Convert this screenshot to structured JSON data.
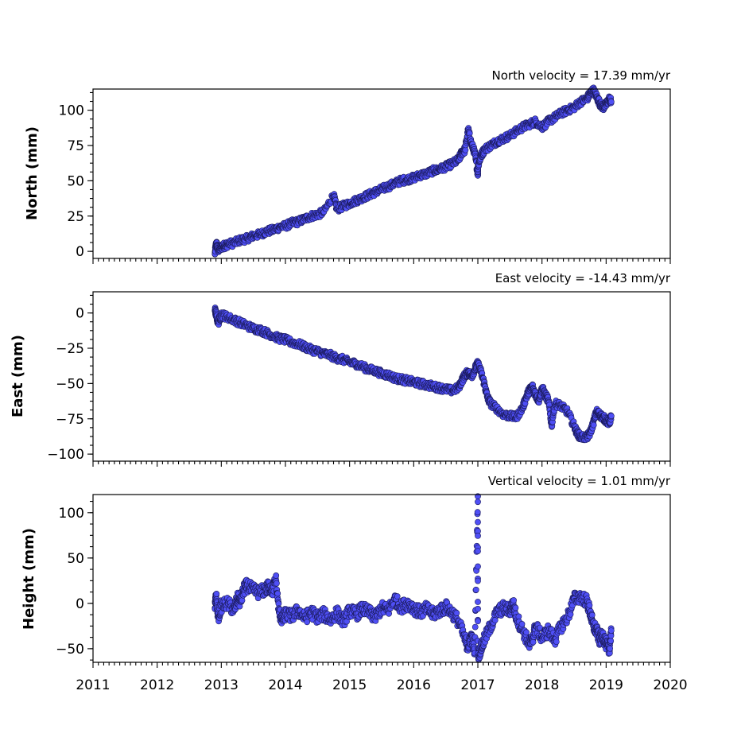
{
  "colors": {
    "marker_fill": "#4f4ff5",
    "marker_edge": "#1a1a5a",
    "axes": "#000000"
  },
  "chart_data": [
    {
      "type": "scatter",
      "title": "North velocity = 17.39 mm/yr",
      "ylabel": "North (mm)",
      "xlabel": "",
      "xlim": [
        2011,
        2020
      ],
      "ylim": [
        -5,
        115
      ],
      "yticks": [
        0,
        25,
        50,
        75,
        100
      ],
      "ytick_labels": [
        "0",
        "25",
        "50",
        "75",
        "100"
      ],
      "grid": false,
      "series": [
        {
          "points": [
            [
              2012.9,
              -2
            ],
            [
              2012.92,
              6
            ],
            [
              2012.95,
              1
            ],
            [
              2013.0,
              3
            ],
            [
              2013.05,
              4
            ],
            [
              2013.1,
              5
            ],
            [
              2013.2,
              6
            ],
            [
              2013.3,
              8
            ],
            [
              2013.4,
              9
            ],
            [
              2013.5,
              11
            ],
            [
              2013.6,
              12
            ],
            [
              2013.7,
              14
            ],
            [
              2013.8,
              15
            ],
            [
              2013.9,
              17
            ],
            [
              2014.0,
              18
            ],
            [
              2014.1,
              20
            ],
            [
              2014.2,
              21
            ],
            [
              2014.3,
              23
            ],
            [
              2014.4,
              25
            ],
            [
              2014.5,
              26
            ],
            [
              2014.6,
              28
            ],
            [
              2014.75,
              40
            ],
            [
              2014.8,
              30
            ],
            [
              2014.9,
              32
            ],
            [
              2015.0,
              34
            ],
            [
              2015.1,
              36
            ],
            [
              2015.2,
              38
            ],
            [
              2015.3,
              40
            ],
            [
              2015.4,
              42
            ],
            [
              2015.5,
              44
            ],
            [
              2015.6,
              46
            ],
            [
              2015.7,
              48
            ],
            [
              2015.8,
              50
            ],
            [
              2015.9,
              51
            ],
            [
              2016.0,
              52
            ],
            [
              2016.1,
              54
            ],
            [
              2016.2,
              55
            ],
            [
              2016.3,
              57
            ],
            [
              2016.4,
              58
            ],
            [
              2016.5,
              60
            ],
            [
              2016.6,
              62
            ],
            [
              2016.7,
              65
            ],
            [
              2016.75,
              70
            ],
            [
              2016.8,
              72
            ],
            [
              2016.85,
              86
            ],
            [
              2016.9,
              76
            ],
            [
              2016.95,
              70
            ],
            [
              2017.0,
              55
            ],
            [
              2017.0,
              60
            ],
            [
              2017.05,
              68
            ],
            [
              2017.1,
              72
            ],
            [
              2017.2,
              75
            ],
            [
              2017.3,
              78
            ],
            [
              2017.4,
              80
            ],
            [
              2017.5,
              82
            ],
            [
              2017.6,
              85
            ],
            [
              2017.7,
              88
            ],
            [
              2017.8,
              90
            ],
            [
              2017.9,
              92
            ],
            [
              2018.0,
              88
            ],
            [
              2018.1,
              92
            ],
            [
              2018.2,
              95
            ],
            [
              2018.3,
              98
            ],
            [
              2018.4,
              100
            ],
            [
              2018.5,
              102
            ],
            [
              2018.6,
              106
            ],
            [
              2018.7,
              108
            ],
            [
              2018.75,
              112
            ],
            [
              2018.8,
              114
            ],
            [
              2018.85,
              110
            ],
            [
              2018.9,
              105
            ],
            [
              2018.95,
              102
            ],
            [
              2019.0,
              104
            ],
            [
              2019.05,
              108
            ],
            [
              2019.08,
              106
            ]
          ]
        }
      ]
    },
    {
      "type": "scatter",
      "title": "East velocity = -14.43 mm/yr",
      "ylabel": "East (mm)",
      "xlabel": "",
      "xlim": [
        2011,
        2020
      ],
      "ylim": [
        -105,
        15
      ],
      "yticks": [
        0,
        -25,
        -50,
        -75,
        -100
      ],
      "ytick_labels": [
        "0",
        "−25",
        "−50",
        "−75",
        "−100"
      ],
      "grid": false,
      "series": [
        {
          "points": [
            [
              2012.9,
              2
            ],
            [
              2012.92,
              -1
            ],
            [
              2012.95,
              -7
            ],
            [
              2013.0,
              -1
            ],
            [
              2013.1,
              -3
            ],
            [
              2013.2,
              -5
            ],
            [
              2013.3,
              -7
            ],
            [
              2013.4,
              -9
            ],
            [
              2013.5,
              -11
            ],
            [
              2013.6,
              -12
            ],
            [
              2013.7,
              -14
            ],
            [
              2013.8,
              -16
            ],
            [
              2013.9,
              -18
            ],
            [
              2014.0,
              -19
            ],
            [
              2014.1,
              -21
            ],
            [
              2014.2,
              -22
            ],
            [
              2014.3,
              -24
            ],
            [
              2014.4,
              -26
            ],
            [
              2014.5,
              -27
            ],
            [
              2014.6,
              -29
            ],
            [
              2014.7,
              -30
            ],
            [
              2014.8,
              -32
            ],
            [
              2014.9,
              -33
            ],
            [
              2015.0,
              -35
            ],
            [
              2015.1,
              -36
            ],
            [
              2015.2,
              -38
            ],
            [
              2015.3,
              -40
            ],
            [
              2015.4,
              -41
            ],
            [
              2015.5,
              -43
            ],
            [
              2015.6,
              -44
            ],
            [
              2015.7,
              -46
            ],
            [
              2015.8,
              -47
            ],
            [
              2015.9,
              -48
            ],
            [
              2016.0,
              -49
            ],
            [
              2016.1,
              -50
            ],
            [
              2016.2,
              -51
            ],
            [
              2016.3,
              -52
            ],
            [
              2016.4,
              -53
            ],
            [
              2016.5,
              -54
            ],
            [
              2016.6,
              -55
            ],
            [
              2016.7,
              -53
            ],
            [
              2016.75,
              -48
            ],
            [
              2016.8,
              -44
            ],
            [
              2016.85,
              -42
            ],
            [
              2016.9,
              -45
            ],
            [
              2016.95,
              -40
            ],
            [
              2017.0,
              -36
            ],
            [
              2017.05,
              -42
            ],
            [
              2017.1,
              -50
            ],
            [
              2017.15,
              -60
            ],
            [
              2017.2,
              -64
            ],
            [
              2017.3,
              -68
            ],
            [
              2017.4,
              -72
            ],
            [
              2017.5,
              -73
            ],
            [
              2017.6,
              -74
            ],
            [
              2017.7,
              -67
            ],
            [
              2017.75,
              -60
            ],
            [
              2017.8,
              -55
            ],
            [
              2017.85,
              -52
            ],
            [
              2017.9,
              -58
            ],
            [
              2017.95,
              -62
            ],
            [
              2018.0,
              -53
            ],
            [
              2018.05,
              -58
            ],
            [
              2018.1,
              -62
            ],
            [
              2018.15,
              -80
            ],
            [
              2018.2,
              -64
            ],
            [
              2018.3,
              -66
            ],
            [
              2018.4,
              -70
            ],
            [
              2018.5,
              -80
            ],
            [
              2018.55,
              -85
            ],
            [
              2018.6,
              -88
            ],
            [
              2018.7,
              -88
            ],
            [
              2018.75,
              -85
            ],
            [
              2018.8,
              -78
            ],
            [
              2018.85,
              -70
            ],
            [
              2018.9,
              -72
            ],
            [
              2018.95,
              -74
            ],
            [
              2019.0,
              -76
            ],
            [
              2019.05,
              -78
            ],
            [
              2019.08,
              -73
            ]
          ]
        }
      ]
    },
    {
      "type": "scatter",
      "title": "Vertical velocity = 1.01 mm/yr",
      "ylabel": "Height (mm)",
      "xlabel": "",
      "xlim": [
        2011,
        2020
      ],
      "ylim": [
        -65,
        120
      ],
      "yticks": [
        100,
        50,
        0,
        -50
      ],
      "ytick_labels": [
        "100",
        "50",
        "0",
        "−50"
      ],
      "xticks": [
        2011,
        2012,
        2013,
        2014,
        2015,
        2016,
        2017,
        2018,
        2019,
        2020
      ],
      "xtick_labels": [
        "2011",
        "2012",
        "2013",
        "2014",
        "2015",
        "2016",
        "2017",
        "2018",
        "2019",
        "2020"
      ],
      "grid": false,
      "series": [
        {
          "points": [
            [
              2012.9,
              -5
            ],
            [
              2012.92,
              9
            ],
            [
              2012.95,
              -15
            ],
            [
              2013.0,
              -3
            ],
            [
              2013.1,
              0
            ],
            [
              2013.2,
              -8
            ],
            [
              2013.25,
              5
            ],
            [
              2013.3,
              2
            ],
            [
              2013.35,
              15
            ],
            [
              2013.4,
              20
            ],
            [
              2013.5,
              14
            ],
            [
              2013.6,
              12
            ],
            [
              2013.7,
              16
            ],
            [
              2013.75,
              19
            ],
            [
              2013.8,
              14
            ],
            [
              2013.85,
              27
            ],
            [
              2013.9,
              -10
            ],
            [
              2013.95,
              -18
            ],
            [
              2014.0,
              -12
            ],
            [
              2014.1,
              -14
            ],
            [
              2014.2,
              -8
            ],
            [
              2014.3,
              -16
            ],
            [
              2014.4,
              -10
            ],
            [
              2014.5,
              -15
            ],
            [
              2014.6,
              -12
            ],
            [
              2014.7,
              -18
            ],
            [
              2014.8,
              -10
            ],
            [
              2014.9,
              -20
            ],
            [
              2015.0,
              -8
            ],
            [
              2015.1,
              -12
            ],
            [
              2015.2,
              -6
            ],
            [
              2015.3,
              -10
            ],
            [
              2015.4,
              -15
            ],
            [
              2015.5,
              -5
            ],
            [
              2015.6,
              -8
            ],
            [
              2015.7,
              5
            ],
            [
              2015.8,
              -4
            ],
            [
              2015.9,
              0
            ],
            [
              2016.0,
              -5
            ],
            [
              2016.1,
              -10
            ],
            [
              2016.2,
              -6
            ],
            [
              2016.3,
              -12
            ],
            [
              2016.4,
              -8
            ],
            [
              2016.5,
              -4
            ],
            [
              2016.6,
              -10
            ],
            [
              2016.7,
              -20
            ],
            [
              2016.8,
              -40
            ],
            [
              2016.85,
              -48
            ],
            [
              2016.9,
              -35
            ],
            [
              2016.95,
              -55
            ],
            [
              2017.0,
              118
            ],
            [
              2017.0,
              -58
            ],
            [
              2017.05,
              -50
            ],
            [
              2017.1,
              -40
            ],
            [
              2017.2,
              -25
            ],
            [
              2017.3,
              -10
            ],
            [
              2017.4,
              -5
            ],
            [
              2017.5,
              -8
            ],
            [
              2017.55,
              0
            ],
            [
              2017.6,
              -15
            ],
            [
              2017.7,
              -30
            ],
            [
              2017.8,
              -45
            ],
            [
              2017.85,
              -40
            ],
            [
              2017.9,
              -25
            ],
            [
              2018.0,
              -38
            ],
            [
              2018.1,
              -30
            ],
            [
              2018.2,
              -40
            ],
            [
              2018.3,
              -25
            ],
            [
              2018.4,
              -15
            ],
            [
              2018.5,
              5
            ],
            [
              2018.6,
              8
            ],
            [
              2018.7,
              2
            ],
            [
              2018.75,
              -10
            ],
            [
              2018.8,
              -25
            ],
            [
              2018.85,
              -30
            ],
            [
              2018.9,
              -40
            ],
            [
              2018.95,
              -35
            ],
            [
              2019.0,
              -45
            ],
            [
              2019.05,
              -52
            ],
            [
              2019.08,
              -30
            ]
          ]
        }
      ]
    }
  ]
}
